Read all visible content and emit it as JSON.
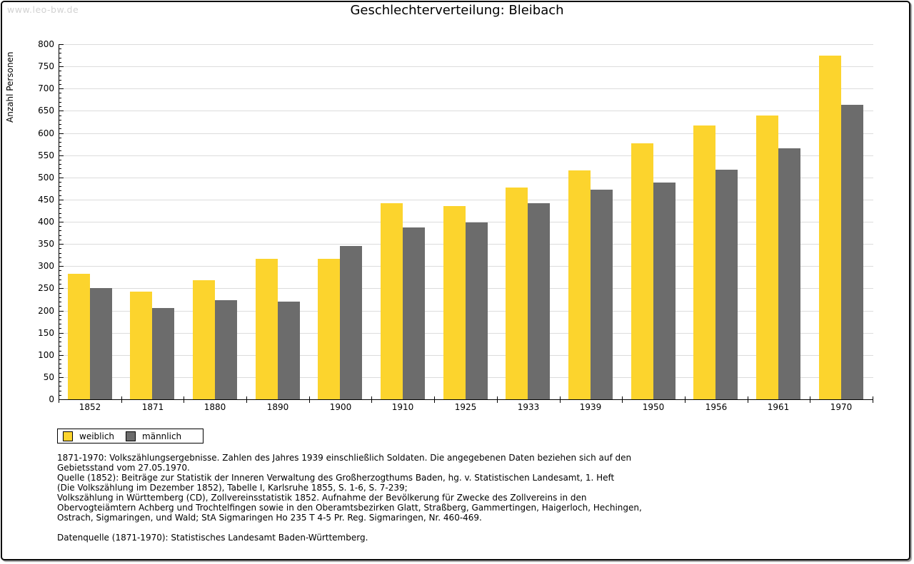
{
  "page": {
    "watermark": "www.leo-bw.de",
    "title": "Geschlechterverteilung: Bleibach"
  },
  "chart_data": {
    "type": "bar",
    "title": "Geschlechterverteilung: Bleibach",
    "xlabel": "",
    "ylabel": "Anzahl Personen",
    "ylim": [
      0,
      800
    ],
    "ytick_step": 50,
    "yminor_step": 10,
    "grid": true,
    "legend_position": "bottom-left",
    "categories": [
      "1852",
      "1871",
      "1880",
      "1890",
      "1900",
      "1910",
      "1925",
      "1933",
      "1939",
      "1950",
      "1956",
      "1961",
      "1970"
    ],
    "series": [
      {
        "name": "weiblich",
        "color": "#FCD42D",
        "values": [
          283,
          242,
          269,
          317,
          316,
          441,
          436,
          477,
          516,
          577,
          617,
          640,
          774
        ]
      },
      {
        "name": "männlich",
        "color": "#6C6C6C",
        "values": [
          251,
          205,
          224,
          220,
          346,
          387,
          399,
          441,
          472,
          489,
          518,
          565,
          664
        ]
      }
    ]
  },
  "footnotes": {
    "lines": [
      "1871-1970: Volkszählungsergebnisse. Zahlen des Jahres 1939 einschließlich Soldaten. Die angegebenen Daten beziehen sich auf den",
      "Gebietsstand vom 27.05.1970.",
      "Quelle (1852): Beiträge zur Statistik der Inneren Verwaltung des Großherzogthums Baden, hg. v. Statistischen Landesamt, 1. Heft",
      "(Die Volkszählung im Dezember 1852), Tabelle I, Karlsruhe 1855, S. 1-6, S. 7-239;",
      "Volkszählung in Württemberg (CD), Zollvereinsstatistik 1852. Aufnahme der Bevölkerung für Zwecke des Zollvereins in den",
      "Obervogteiämtern Achberg und Trochtelfingen sowie in den Oberamtsbezirken Glatt, Straßberg, Gammertingen, Haigerloch, Hechingen,",
      "Ostrach, Sigmaringen, und Wald; StA Sigmaringen Ho 235 T 4-5 Pr. Reg. Sigmaringen, Nr. 460-469."
    ],
    "datasource": "Datenquelle (1871-1970): Statistisches Landesamt Baden-Württemberg."
  },
  "colors": {
    "female_bar": "#FCD42D",
    "male_bar": "#6C6C6C",
    "gridline": "#DCDCDC",
    "watermark_text": "#D2D2D2",
    "axis": "#000000"
  }
}
